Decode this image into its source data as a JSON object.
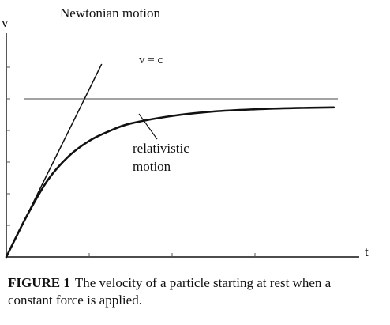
{
  "chart_data": {
    "type": "line",
    "title": "",
    "xlabel": "t",
    "ylabel": "v",
    "xlim": [
      0,
      4
    ],
    "ylim": [
      0,
      7
    ],
    "grid": false,
    "legend": "none",
    "limit_label": "v = c",
    "c_value": 5,
    "series": [
      {
        "name": "Newtonian motion",
        "x": [
          0,
          1.0,
          1.15
        ],
        "y": [
          0,
          5.3,
          6.1
        ]
      },
      {
        "name": "relativistic motion",
        "x": [
          0,
          0.25,
          0.5,
          0.75,
          1.0,
          1.25,
          1.5,
          2.0,
          2.5,
          3.0,
          3.5,
          3.95
        ],
        "y": [
          0,
          1.31,
          2.43,
          3.18,
          3.67,
          3.99,
          4.22,
          4.46,
          4.6,
          4.67,
          4.71,
          4.73
        ]
      }
    ],
    "annotations": [
      {
        "text": "Newtonian motion",
        "series": "Newtonian motion"
      },
      {
        "text": "relativistic",
        "series": "relativistic motion"
      },
      {
        "text": "motion",
        "series": "relativistic motion"
      }
    ]
  },
  "caption": {
    "figure_label": "FIGURE 1",
    "text": "The velocity of a particle starting at rest when a constant force is applied."
  },
  "colors": {
    "ink": "#111111",
    "background": "#ffffff"
  }
}
